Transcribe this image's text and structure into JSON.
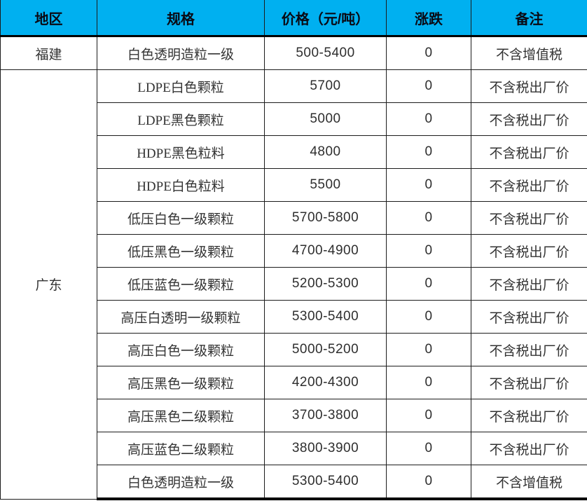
{
  "chart_data": {
    "type": "table",
    "columns": [
      "地区",
      "规格",
      "价格（元/吨）",
      "涨跌",
      "备注"
    ],
    "regions": [
      {
        "name": "福建",
        "rows": [
          [
            "白色透明造粒一级",
            "500-5400",
            "0",
            "不含增值税"
          ]
        ]
      },
      {
        "name": "广东",
        "rows": [
          [
            "LDPE白色颗粒",
            "5700",
            "0",
            "不含税出厂价"
          ],
          [
            "LDPE黑色颗粒",
            "5000",
            "0",
            "不含税出厂价"
          ],
          [
            "HDPE黑色粒料",
            "4800",
            "0",
            "不含税出厂价"
          ],
          [
            "HDPE白色粒料",
            "5500",
            "0",
            "不含税出厂价"
          ],
          [
            "低压白色一级颗粒",
            "5700-5800",
            "0",
            "不含税出厂价"
          ],
          [
            "低压黑色一级颗粒",
            "4700-4900",
            "0",
            "不含税出厂价"
          ],
          [
            "低压蓝色一级颗粒",
            "5200-5300",
            "0",
            "不含税出厂价"
          ],
          [
            "高压白透明一级颗粒",
            "5300-5400",
            "0",
            "不含税出厂价"
          ],
          [
            "高压白色一级颗粒",
            "5000-5200",
            "0",
            "不含税出厂价"
          ],
          [
            "高压黑色一级颗粒",
            "4200-4300",
            "0",
            "不含税出厂价"
          ],
          [
            "高压黑色二级颗粒",
            "3700-3800",
            "0",
            "不含税出厂价"
          ],
          [
            "高压蓝色二级颗粒",
            "3800-3900",
            "0",
            "不含税出厂价"
          ],
          [
            "白色透明造粒一级",
            "5300-5400",
            "0",
            "不含增值税"
          ]
        ]
      }
    ],
    "layout": {
      "header_position": "top",
      "merged_region_rowspans": [
        1,
        13
      ],
      "grid": "on"
    },
    "colors": {
      "header_bg": "#00B0F0",
      "header_text": "#0a0a14",
      "body_text": "#333333",
      "grid_line": "#1c1c1c",
      "thick_rule": "#000000"
    }
  }
}
